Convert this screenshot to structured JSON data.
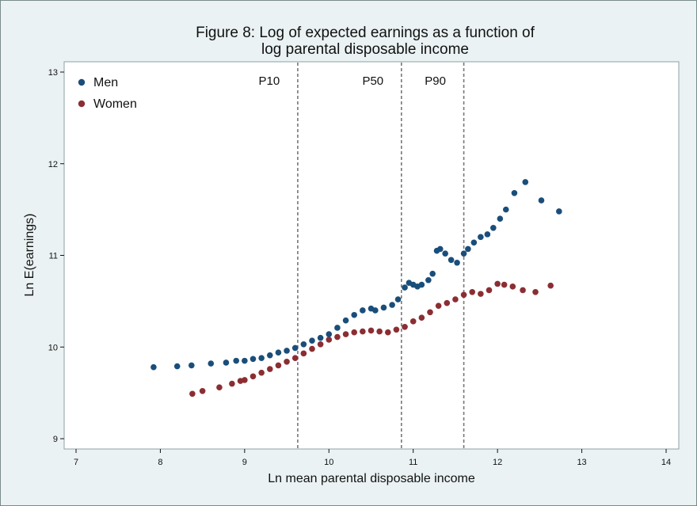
{
  "chart_data": {
    "type": "scatter",
    "title": "Figure 8: Log of expected earnings as a function of",
    "subtitle": "log parental disposable income",
    "xlabel": "Ln mean parental disposable income",
    "ylabel": "Ln E(earnings)",
    "xlim": [
      7,
      14
    ],
    "ylim": [
      9,
      13
    ],
    "xticks": [
      "7",
      "8",
      "9",
      "10",
      "11",
      "12",
      "13",
      "14"
    ],
    "yticks": [
      "9",
      "10",
      "11",
      "12",
      "13"
    ],
    "legend_position": "top-left",
    "reference_lines": [
      {
        "label": "P10",
        "x": 9.63
      },
      {
        "label": "P50",
        "x": 10.86
      },
      {
        "label": "P90",
        "x": 11.6
      }
    ],
    "series": [
      {
        "name": "Men",
        "color": "#1a4e7a",
        "points": [
          [
            7.92,
            9.78
          ],
          [
            8.2,
            9.79
          ],
          [
            8.37,
            9.8
          ],
          [
            8.6,
            9.82
          ],
          [
            8.78,
            9.83
          ],
          [
            8.9,
            9.85
          ],
          [
            9.0,
            9.85
          ],
          [
            9.1,
            9.87
          ],
          [
            9.2,
            9.88
          ],
          [
            9.3,
            9.91
          ],
          [
            9.4,
            9.94
          ],
          [
            9.5,
            9.96
          ],
          [
            9.6,
            9.99
          ],
          [
            9.7,
            10.03
          ],
          [
            9.8,
            10.07
          ],
          [
            9.9,
            10.1
          ],
          [
            10.0,
            10.14
          ],
          [
            10.1,
            10.21
          ],
          [
            10.2,
            10.29
          ],
          [
            10.3,
            10.35
          ],
          [
            10.4,
            10.4
          ],
          [
            10.5,
            10.42
          ],
          [
            10.55,
            10.4
          ],
          [
            10.65,
            10.43
          ],
          [
            10.75,
            10.46
          ],
          [
            10.82,
            10.52
          ],
          [
            10.9,
            10.65
          ],
          [
            10.95,
            10.7
          ],
          [
            11.0,
            10.68
          ],
          [
            11.05,
            10.66
          ],
          [
            11.1,
            10.68
          ],
          [
            11.18,
            10.73
          ],
          [
            11.23,
            10.8
          ],
          [
            11.28,
            11.05
          ],
          [
            11.32,
            11.07
          ],
          [
            11.38,
            11.02
          ],
          [
            11.45,
            10.95
          ],
          [
            11.52,
            10.92
          ],
          [
            11.6,
            11.02
          ],
          [
            11.65,
            11.07
          ],
          [
            11.72,
            11.14
          ],
          [
            11.8,
            11.2
          ],
          [
            11.88,
            11.23
          ],
          [
            11.95,
            11.3
          ],
          [
            12.03,
            11.4
          ],
          [
            12.1,
            11.5
          ],
          [
            12.2,
            11.68
          ],
          [
            12.33,
            11.8
          ],
          [
            12.52,
            11.6
          ],
          [
            12.73,
            11.48
          ]
        ]
      },
      {
        "name": "Women",
        "color": "#8b2e33",
        "points": [
          [
            8.38,
            9.49
          ],
          [
            8.5,
            9.52
          ],
          [
            8.7,
            9.56
          ],
          [
            8.85,
            9.6
          ],
          [
            8.95,
            9.63
          ],
          [
            9.0,
            9.64
          ],
          [
            9.1,
            9.68
          ],
          [
            9.2,
            9.72
          ],
          [
            9.3,
            9.76
          ],
          [
            9.4,
            9.8
          ],
          [
            9.5,
            9.84
          ],
          [
            9.6,
            9.88
          ],
          [
            9.7,
            9.93
          ],
          [
            9.8,
            9.98
          ],
          [
            9.9,
            10.03
          ],
          [
            10.0,
            10.08
          ],
          [
            10.1,
            10.11
          ],
          [
            10.2,
            10.14
          ],
          [
            10.3,
            10.16
          ],
          [
            10.4,
            10.17
          ],
          [
            10.5,
            10.18
          ],
          [
            10.6,
            10.17
          ],
          [
            10.7,
            10.16
          ],
          [
            10.8,
            10.19
          ],
          [
            10.9,
            10.22
          ],
          [
            11.0,
            10.28
          ],
          [
            11.1,
            10.32
          ],
          [
            11.2,
            10.38
          ],
          [
            11.3,
            10.45
          ],
          [
            11.4,
            10.48
          ],
          [
            11.5,
            10.52
          ],
          [
            11.6,
            10.57
          ],
          [
            11.7,
            10.6
          ],
          [
            11.8,
            10.58
          ],
          [
            11.9,
            10.62
          ],
          [
            12.0,
            10.69
          ],
          [
            12.08,
            10.68
          ],
          [
            12.18,
            10.66
          ],
          [
            12.3,
            10.62
          ],
          [
            12.45,
            10.6
          ],
          [
            12.63,
            10.67
          ]
        ]
      }
    ]
  }
}
